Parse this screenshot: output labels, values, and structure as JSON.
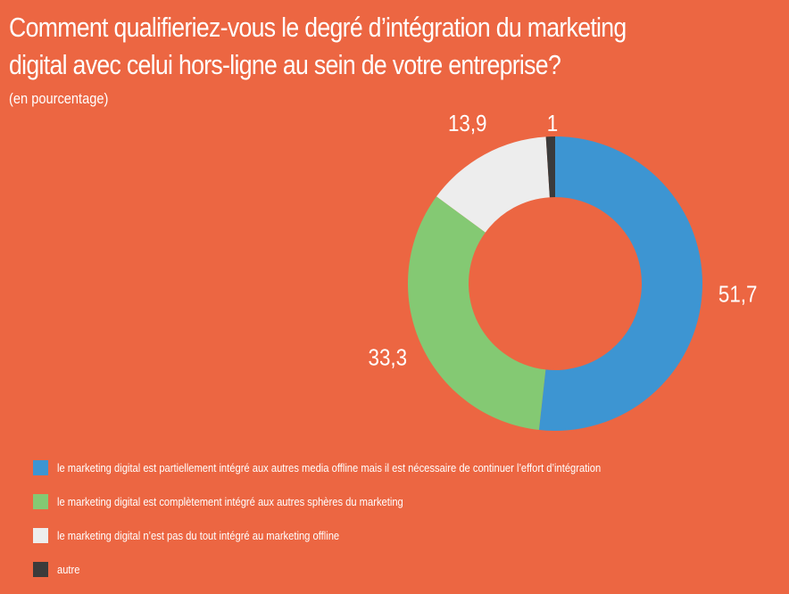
{
  "chart_data": {
    "type": "pie",
    "variant": "donut",
    "title": "Comment qualifieriez-vous le degré d’intégration du marketing digital avec celui hors-ligne au sein de votre entreprise?",
    "title_lines": [
      "Comment qualifieriez-vous le degré d’intégration du marketing",
      "digital avec celui hors-ligne au sein de votre entreprise?"
    ],
    "subtitle": "(en pourcentage)",
    "slices": [
      {
        "label": "le marketing digital est partiellement intégré aux autres media offline mais il est nécessaire de continuer l’effort d’intégration",
        "value": 51.7,
        "display": "51,7",
        "color": "#3D95D2"
      },
      {
        "label": "le marketing digital est complètement intégré aux autres sphères du marketing",
        "value": 33.3,
        "display": "33,3",
        "color": "#84C973"
      },
      {
        "label": "le marketing digital n’est pas du tout intégré au marketing offline",
        "value": 13.9,
        "display": "13,9",
        "color": "#EDEDED"
      },
      {
        "label": "autre",
        "value": 1,
        "display": "1",
        "color": "#3B3B3B"
      }
    ],
    "legend_position": "bottom-left"
  },
  "background_color": "#EC6642"
}
